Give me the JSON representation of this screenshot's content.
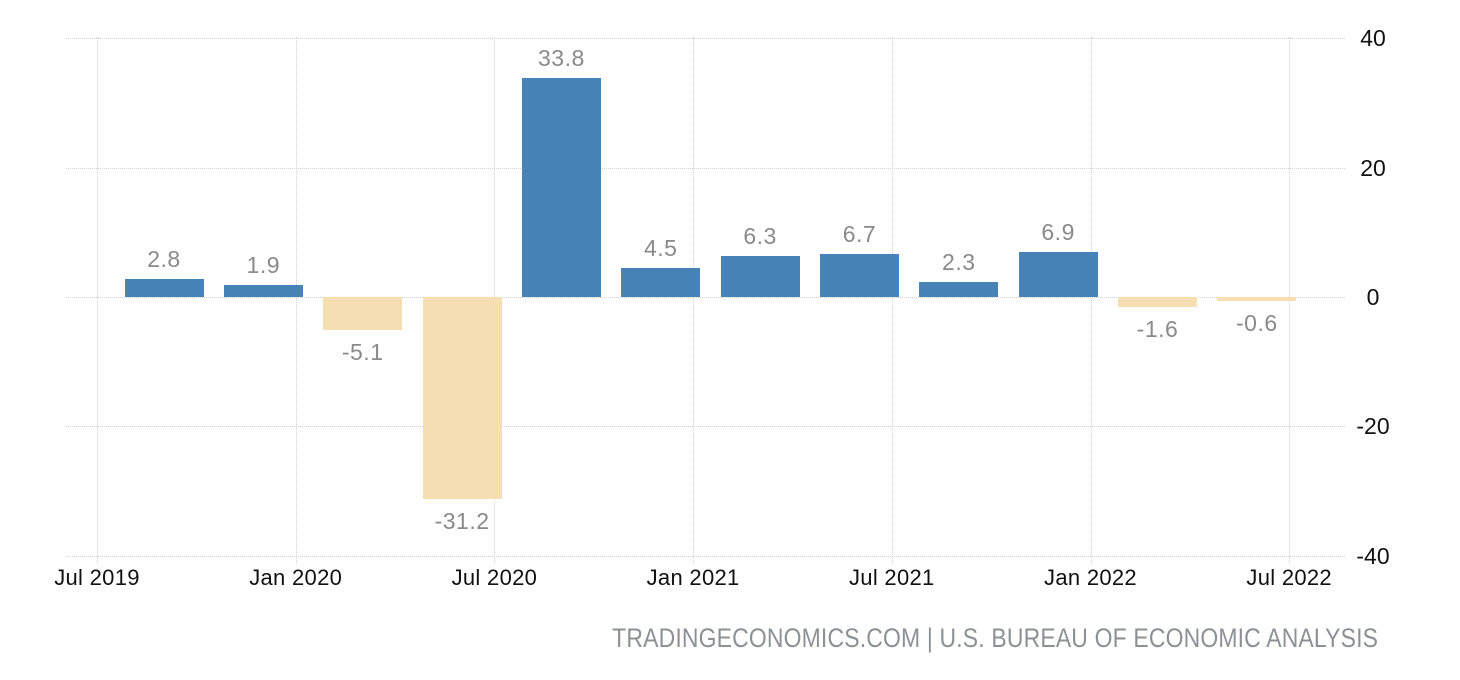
{
  "footer": {
    "source_line": "TRADINGECONOMICS.COM | U.S. BUREAU OF ECONOMIC ANALYSIS"
  },
  "chart_data": {
    "type": "bar",
    "periods": [
      "Q3 2019",
      "Q4 2019",
      "Q1 2020",
      "Q2 2020",
      "Q3 2020",
      "Q4 2020",
      "Q1 2021",
      "Q2 2021",
      "Q3 2021",
      "Q4 2021",
      "Q1 2022",
      "Q2 2022"
    ],
    "values": [
      2.8,
      1.9,
      -5.1,
      -31.2,
      33.8,
      4.5,
      6.3,
      6.7,
      2.3,
      6.9,
      -1.6,
      -0.6
    ],
    "bar_labels": [
      "2.8",
      "1.9",
      "-5.1",
      "-31.2",
      "33.8",
      "4.5",
      "6.3",
      "6.7",
      "2.3",
      "6.9",
      "-1.6",
      "-0.6"
    ],
    "x_tick_labels": [
      "Jul 2019",
      "Jan 2020",
      "Jul 2020",
      "Jan 2021",
      "Jul 2021",
      "Jan 2022",
      "Jul 2022"
    ],
    "y_ticks": [
      40,
      20,
      0,
      -20,
      -40
    ],
    "ylim": [
      -40,
      40
    ],
    "grid": "dotted",
    "legend": "none",
    "y_axis_side": "right",
    "colors": {
      "positive": "#4883B7",
      "negative": "#F4DEB2",
      "data_label": "#8A8A8A",
      "axis_label": "#111111",
      "gridline": "#D2D2D2",
      "footer_text": "#8D9196",
      "background": "#FFFFFF"
    }
  }
}
